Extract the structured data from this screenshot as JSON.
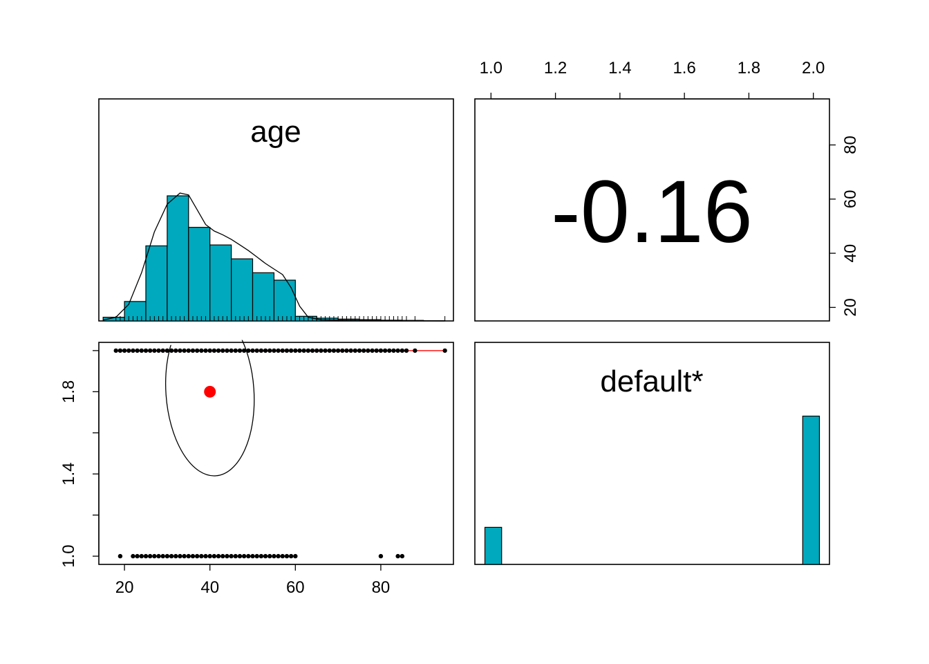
{
  "colors": {
    "bar_fill": "#00A9BD",
    "bar_stroke": "#000000",
    "point": "#000000",
    "centroid": "#FF0000",
    "smoother": "#FF0000",
    "ellipse": "#000000"
  },
  "chart_data": [
    {
      "type": "histogram",
      "panel": "age-diagonal",
      "title": "age",
      "x_range": [
        14,
        97
      ],
      "bins": [
        {
          "x0": 15,
          "x1": 20,
          "height": 0.02
        },
        {
          "x0": 20,
          "x1": 25,
          "height": 0.105
        },
        {
          "x0": 25,
          "x1": 30,
          "height": 0.405
        },
        {
          "x0": 30,
          "x1": 35,
          "height": 0.675
        },
        {
          "x0": 35,
          "x1": 40,
          "height": 0.505
        },
        {
          "x0": 40,
          "x1": 45,
          "height": 0.41
        },
        {
          "x0": 45,
          "x1": 50,
          "height": 0.335
        },
        {
          "x0": 50,
          "x1": 55,
          "height": 0.26
        },
        {
          "x0": 55,
          "x1": 60,
          "height": 0.22
        },
        {
          "x0": 60,
          "x1": 65,
          "height": 0.025
        },
        {
          "x0": 65,
          "x1": 70,
          "height": 0.015
        },
        {
          "x0": 70,
          "x1": 75,
          "height": 0.01
        },
        {
          "x0": 75,
          "x1": 80,
          "height": 0.007
        },
        {
          "x0": 80,
          "x1": 85,
          "height": 0.004
        },
        {
          "x0": 85,
          "x1": 90,
          "height": 0.003
        },
        {
          "x0": 90,
          "x1": 95,
          "height": 0.001
        }
      ],
      "density": [
        [
          15,
          0.005
        ],
        [
          18,
          0.02
        ],
        [
          21,
          0.09
        ],
        [
          24,
          0.26
        ],
        [
          27,
          0.48
        ],
        [
          30,
          0.63
        ],
        [
          33,
          0.69
        ],
        [
          35,
          0.68
        ],
        [
          37,
          0.6
        ],
        [
          39,
          0.52
        ],
        [
          41,
          0.485
        ],
        [
          43,
          0.465
        ],
        [
          45,
          0.44
        ],
        [
          47,
          0.41
        ],
        [
          49,
          0.38
        ],
        [
          51,
          0.345
        ],
        [
          53,
          0.31
        ],
        [
          55,
          0.28
        ],
        [
          57,
          0.25
        ],
        [
          59,
          0.18
        ],
        [
          61,
          0.08
        ],
        [
          63,
          0.02
        ],
        [
          66,
          0.006
        ],
        [
          70,
          0.004
        ],
        [
          80,
          0.002
        ],
        [
          95,
          0.0
        ]
      ]
    },
    {
      "type": "text",
      "panel": "correlation",
      "value": "-0.16",
      "top_axis": {
        "range": [
          0.95,
          2.05
        ],
        "ticks": [
          "1.0",
          "1.2",
          "1.4",
          "1.6",
          "1.8",
          "2.0"
        ]
      },
      "right_axis": {
        "range": [
          15,
          97
        ],
        "ticks": [
          "20",
          "40",
          "60",
          "80"
        ]
      }
    },
    {
      "type": "scatter",
      "panel": "age-vs-default",
      "x_range": [
        14,
        97
      ],
      "y_range": [
        0.96,
        2.04
      ],
      "x_ticks": [
        "20",
        "40",
        "60",
        "80"
      ],
      "y_ticks": [
        "1.0",
        "1.4",
        "1.8"
      ],
      "series": [
        {
          "y": 2,
          "x": [
            18,
            19,
            20,
            21,
            22,
            23,
            24,
            25,
            26,
            27,
            28,
            29,
            30,
            31,
            32,
            33,
            34,
            35,
            36,
            37,
            38,
            39,
            40,
            41,
            42,
            43,
            44,
            45,
            46,
            47,
            48,
            49,
            50,
            51,
            52,
            53,
            54,
            55,
            56,
            57,
            58,
            59,
            60,
            61,
            62,
            63,
            64,
            65,
            66,
            67,
            68,
            69,
            70,
            71,
            72,
            73,
            74,
            75,
            76,
            77,
            78,
            79,
            80,
            81,
            82,
            83,
            84,
            85,
            86,
            88,
            95
          ]
        },
        {
          "y": 1,
          "x": [
            19,
            22,
            23,
            24,
            25,
            26,
            27,
            28,
            29,
            30,
            31,
            32,
            33,
            34,
            35,
            36,
            37,
            38,
            39,
            40,
            41,
            42,
            43,
            44,
            45,
            46,
            47,
            48,
            49,
            50,
            51,
            52,
            53,
            54,
            55,
            56,
            57,
            58,
            59,
            60,
            80,
            84,
            85
          ]
        }
      ],
      "centroid": {
        "x": 40,
        "y": 1.8
      },
      "ellipse": {
        "cx": 40,
        "cy": 1.8,
        "rx": 10.3,
        "ry": 0.41,
        "tilt": -4
      },
      "smoother": [
        [
          18,
          2
        ],
        [
          95,
          2
        ]
      ]
    },
    {
      "type": "bar",
      "panel": "default-diagonal",
      "title": "default*",
      "x_range": [
        0.97,
        2.03
      ],
      "bins": [
        {
          "x0": 1.0,
          "x1": 1.05,
          "height": 0.2
        },
        {
          "x0": 1.95,
          "x1": 2.0,
          "height": 0.8
        }
      ]
    }
  ]
}
